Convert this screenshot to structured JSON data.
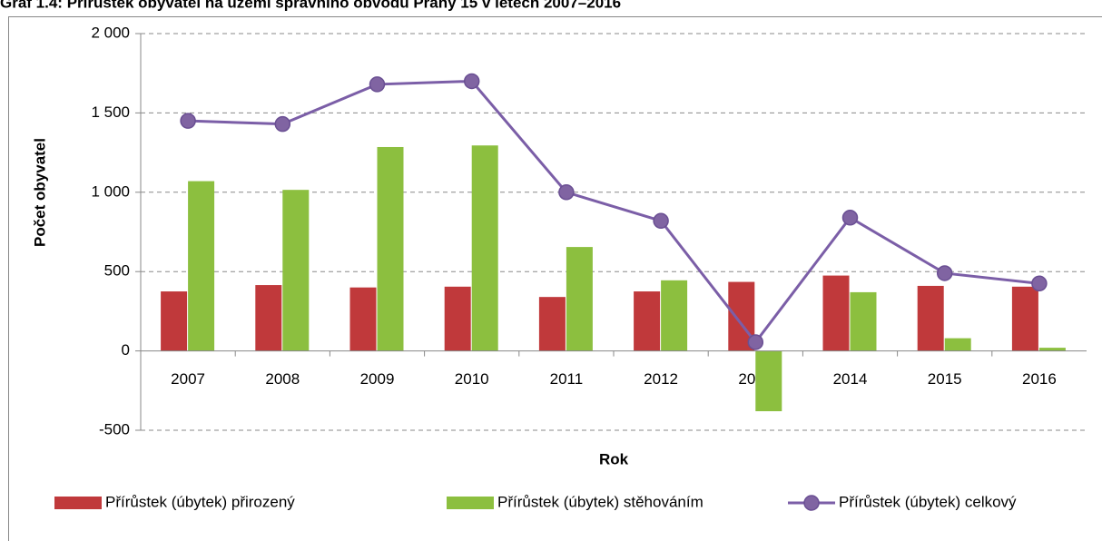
{
  "chart_data": {
    "type": "bar_line",
    "title": "Graf 1.4: Přírůstek obyvatel na území správního obvodu Prahy 15 v letech 2007–2016",
    "y_label": "Počet obyvatel",
    "x_label": "Rok",
    "categories": [
      "2007",
      "2008",
      "2009",
      "2010",
      "2011",
      "2012",
      "2013",
      "2014",
      "2015",
      "2016"
    ],
    "series": [
      {
        "name": "Přírůstek (úbytek) přirozený",
        "type": "bar",
        "color": "#c0393b",
        "values": [
          375,
          415,
          400,
          405,
          340,
          375,
          435,
          475,
          410,
          405
        ]
      },
      {
        "name": "Přírůstek (úbytek) stěhováním",
        "type": "bar",
        "color": "#8cbf3f",
        "values": [
          1070,
          1015,
          1285,
          1295,
          655,
          445,
          -380,
          370,
          80,
          20
        ]
      },
      {
        "name": "Přírůstek (úbytek) celkový",
        "type": "line",
        "color": "#7b5ea7",
        "values": [
          1450,
          1430,
          1680,
          1700,
          1000,
          820,
          55,
          840,
          490,
          425
        ]
      }
    ],
    "ylim": [
      -500,
      2000
    ],
    "yticks": [
      -500,
      0,
      500,
      {
        "value": 1000,
        "label": "1 000"
      },
      {
        "value": 1500,
        "label": "1 500"
      },
      {
        "value": 2000,
        "label": "2 000"
      }
    ],
    "grid": true,
    "legend": "bottom"
  }
}
